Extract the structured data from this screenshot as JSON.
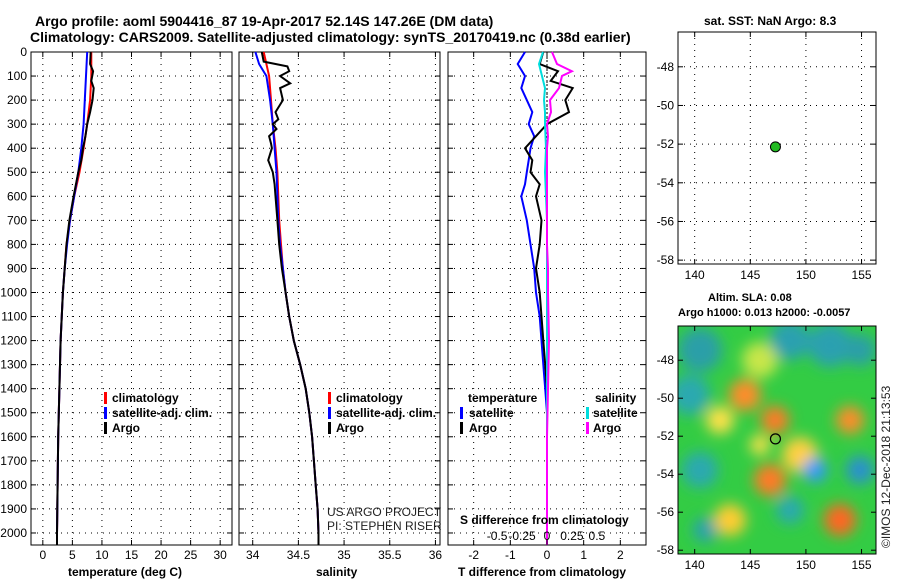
{
  "header": {
    "line1": "Argo profile: aoml 5904416_87 19-Apr-2017 52.14S 147.26E (DM data)",
    "line2": "Climatology: CARS2009. Satellite-adjusted climatology: synTS_20170419.nc (0.38d earlier)"
  },
  "colors": {
    "climatology": "#ff0000",
    "satellite": "#0000ff",
    "argo": "#000000",
    "satellite_salinity": "#00dddd",
    "argo_salinity": "#ff00ff"
  },
  "depth_ticks": [
    "0",
    "100",
    "200",
    "300",
    "400",
    "500",
    "600",
    "700",
    "800",
    "900",
    "1000",
    "1100",
    "1200",
    "1300",
    "1400",
    "1500",
    "1600",
    "1700",
    "1800",
    "1900",
    "2000"
  ],
  "chart_data": [
    {
      "type": "line",
      "xlabel": "temperature (deg C)",
      "xticks": [
        "0",
        "5",
        "10",
        "15",
        "20",
        "25",
        "30"
      ],
      "xlim": [
        -2,
        32
      ],
      "ylim": [
        0,
        2050
      ],
      "legend": [
        "climatology",
        "satellite-adj. clim.",
        "Argo"
      ],
      "legend_location": "center",
      "series": [
        {
          "name": "climatology",
          "color": "#ff0000",
          "depth": [
            0,
            100,
            200,
            300,
            400,
            500,
            600,
            700,
            800,
            900,
            1000,
            1200,
            1400,
            1600,
            1800,
            2000,
            2050
          ],
          "values": [
            8.2,
            8.2,
            8.0,
            7.5,
            6.9,
            6.2,
            5.3,
            4.6,
            4.0,
            3.7,
            3.4,
            3.0,
            2.8,
            2.6,
            2.5,
            2.4,
            2.4
          ]
        },
        {
          "name": "satellite-adj. clim.",
          "color": "#0000ff",
          "depth": [
            0,
            50,
            100,
            200,
            300,
            400,
            500,
            600,
            700,
            800,
            900,
            1000,
            1200,
            1400,
            1600,
            1800,
            2000,
            2050
          ],
          "values": [
            7.5,
            7.4,
            7.3,
            7.1,
            6.9,
            6.5,
            6.0,
            5.3,
            4.6,
            4.1,
            3.7,
            3.4,
            3.0,
            2.8,
            2.6,
            2.5,
            2.4,
            2.4
          ]
        },
        {
          "name": "Argo",
          "color": "#000000",
          "depth": [
            0,
            50,
            80,
            120,
            150,
            200,
            250,
            300,
            350,
            400,
            450,
            500,
            600,
            700,
            800,
            900,
            1000,
            1200,
            1400,
            1600,
            1800,
            2000,
            2050
          ],
          "values": [
            8.1,
            8.0,
            8.5,
            8.2,
            8.6,
            8.4,
            8.0,
            7.5,
            7.2,
            6.8,
            6.5,
            6.0,
            5.2,
            4.5,
            4.0,
            3.7,
            3.4,
            3.0,
            2.8,
            2.6,
            2.5,
            2.4,
            2.4
          ]
        }
      ]
    },
    {
      "type": "line",
      "xlabel": "salinity",
      "xticks": [
        "34",
        "34.5",
        "35",
        "35.5",
        "36"
      ],
      "xlim": [
        33.85,
        36.05
      ],
      "ylim": [
        0,
        2050
      ],
      "legend": [
        "climatology",
        "satellite-adj. clim.",
        "Argo"
      ],
      "legend_location": "bottom-right",
      "annotation": [
        "US ARGO PROJECT",
        "PI: STEPHEN RISER"
      ],
      "series": [
        {
          "name": "climatology",
          "color": "#ff0000",
          "depth": [
            0,
            100,
            200,
            300,
            400,
            500,
            600,
            700,
            800,
            900,
            1000,
            1100,
            1200,
            1300,
            1400,
            1500,
            1600,
            1700,
            1800,
            1900,
            2000,
            2050
          ],
          "values": [
            34.12,
            34.18,
            34.2,
            34.22,
            34.25,
            34.27,
            34.28,
            34.29,
            34.31,
            34.33,
            34.36,
            34.4,
            34.45,
            34.52,
            34.58,
            34.62,
            34.65,
            34.67,
            34.69,
            34.71,
            34.72,
            34.72
          ]
        },
        {
          "name": "satellite-adj. clim.",
          "color": "#0000ff",
          "depth": [
            0,
            50,
            100,
            200,
            300,
            400,
            500,
            600,
            700,
            800,
            900,
            1000,
            1100,
            1200,
            1300,
            1400,
            1500,
            1600,
            1700,
            1800,
            1900,
            2000,
            2050
          ],
          "values": [
            34.03,
            34.07,
            34.15,
            34.19,
            34.22,
            34.24,
            34.26,
            34.27,
            34.28,
            34.3,
            34.33,
            34.36,
            34.4,
            34.45,
            34.52,
            34.58,
            34.62,
            34.65,
            34.67,
            34.69,
            34.71,
            34.72,
            34.72
          ]
        },
        {
          "name": "Argo",
          "color": "#000000",
          "depth": [
            0,
            40,
            60,
            80,
            100,
            130,
            150,
            200,
            250,
            280,
            300,
            320,
            350,
            380,
            400,
            450,
            500,
            550,
            600,
            700,
            800,
            900,
            1000,
            1100,
            1200,
            1300,
            1400,
            1500,
            1600,
            1700,
            1800,
            1900,
            2000,
            2050
          ],
          "values": [
            34.1,
            34.12,
            34.38,
            34.4,
            34.3,
            34.41,
            34.3,
            34.33,
            34.25,
            34.28,
            34.22,
            34.26,
            34.18,
            34.2,
            34.21,
            34.17,
            34.22,
            34.24,
            34.25,
            34.27,
            34.29,
            34.32,
            34.36,
            34.4,
            34.45,
            34.52,
            34.58,
            34.62,
            34.65,
            34.67,
            34.69,
            34.71,
            34.72,
            34.72
          ]
        }
      ]
    },
    {
      "type": "line",
      "xlabel": "T difference from climatology",
      "xlabel2": "S difference from climatology",
      "xticks": [
        "-2",
        "-1",
        "0",
        "1",
        "2"
      ],
      "xticks2": [
        "-0.5",
        "-0.25",
        "0",
        "0.25",
        "0.5"
      ],
      "xlim": [
        -2.7,
        2.7
      ],
      "legend_left_title": "temperature",
      "legend_right_title": "salinity",
      "legend_left": [
        "satellite",
        "Argo"
      ],
      "legend_right": [
        "satellite",
        "Argo"
      ],
      "series": [
        {
          "name": "satellite",
          "color": "#0000ff",
          "quantity": "temperature",
          "depth": [
            0,
            50,
            100,
            150,
            200,
            250,
            300,
            350,
            400,
            450,
            500,
            550,
            600,
            700,
            800,
            900,
            1000,
            1100,
            1200,
            1300,
            1400,
            1500,
            1600,
            1800,
            2000,
            2050
          ],
          "values": [
            -0.6,
            -0.8,
            -0.6,
            -0.7,
            -0.55,
            -0.4,
            -0.5,
            -0.35,
            -0.45,
            -0.5,
            -0.55,
            -0.6,
            -0.7,
            -0.55,
            -0.45,
            -0.35,
            -0.3,
            -0.2,
            -0.15,
            -0.1,
            -0.05,
            0,
            0,
            0,
            0,
            0
          ]
        },
        {
          "name": "Argo",
          "color": "#000000",
          "quantity": "temperature",
          "depth": [
            0,
            50,
            80,
            120,
            150,
            200,
            250,
            300,
            350,
            400,
            450,
            500,
            550,
            600,
            700,
            800,
            900,
            1000,
            1100,
            1200,
            1300,
            1400,
            1500,
            1600,
            1800,
            2000,
            2050
          ],
          "values": [
            -0.1,
            -0.2,
            0.3,
            0.1,
            0.7,
            0.5,
            0.6,
            0.0,
            -0.3,
            -0.6,
            -0.4,
            -0.45,
            -0.2,
            -0.3,
            -0.15,
            -0.2,
            -0.3,
            -0.2,
            -0.15,
            -0.1,
            -0.05,
            0,
            0,
            0,
            0,
            0,
            0
          ]
        },
        {
          "name": "satellite",
          "color": "#00dddd",
          "quantity": "salinity",
          "depth": [
            0,
            50,
            100,
            150,
            200,
            250,
            300,
            400,
            500,
            600,
            700,
            800,
            900,
            1000,
            1200,
            1400,
            1600,
            1800,
            2000,
            2050
          ],
          "values": [
            -0.04,
            -0.08,
            -0.05,
            -0.02,
            -0.03,
            -0.02,
            -0.02,
            -0.01,
            -0.02,
            -0.01,
            0.0,
            0.0,
            0.0,
            0.0,
            0.0,
            0.0,
            0.0,
            0.0,
            0.0,
            0.0
          ]
        },
        {
          "name": "Argo",
          "color": "#ff00ff",
          "quantity": "salinity",
          "depth": [
            0,
            50,
            80,
            100,
            150,
            200,
            250,
            300,
            350,
            400,
            500,
            600,
            700,
            800,
            900,
            1000,
            1200,
            1400,
            1600,
            1800,
            2000,
            2050
          ],
          "values": [
            0.05,
            0.1,
            0.25,
            0.15,
            0.12,
            0.03,
            0.04,
            0.0,
            0.01,
            0.0,
            0.0,
            0.0,
            0.0,
            0.0,
            0.01,
            0.01,
            0.02,
            0.01,
            0.0,
            0.0,
            0.0,
            0.0
          ]
        }
      ]
    },
    {
      "type": "scatter",
      "title": "sat. SST: NaN Argo: 8.3",
      "xticks": [
        "140",
        "145",
        "150",
        "155"
      ],
      "yticks": [
        "-48",
        "-50",
        "-52",
        "-54",
        "-56",
        "-58"
      ],
      "xlim": [
        138.5,
        156.3
      ],
      "ylim": [
        -58.2,
        -46.2
      ],
      "points": [
        {
          "x": 147.26,
          "y": -52.14,
          "color": "#22bb22"
        }
      ]
    },
    {
      "type": "heatmap",
      "title": "Altim. SLA: 0.08",
      "subtitle": "Argo h1000: 0.013 h2000: -0.0057",
      "xticks": [
        "140",
        "145",
        "150",
        "155"
      ],
      "yticks": [
        "-48",
        "-50",
        "-52",
        "-54",
        "-56",
        "-58"
      ],
      "xlim": [
        138.5,
        156.3
      ],
      "ylim": [
        -58.2,
        -46.2
      ],
      "points": [
        {
          "x": 147.26,
          "y": -52.14
        }
      ]
    }
  ],
  "credit": "©IMOS 12-Dec-2018 21:13:53"
}
